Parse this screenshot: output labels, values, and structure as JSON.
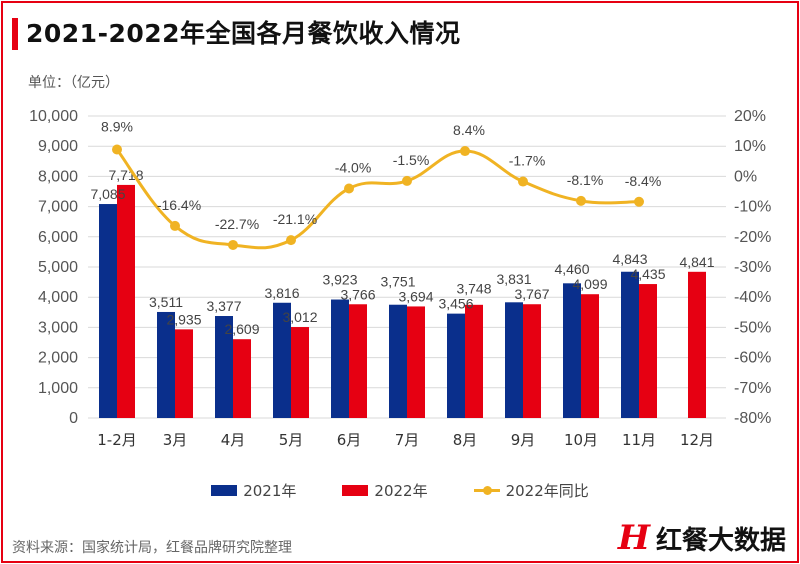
{
  "title": "2021-2022年全国各月餐饮收入情况",
  "unit": "单位：（亿元）",
  "source": "资料来源：国家统计局，红餐品牌研究院整理",
  "logo": {
    "mark": "H",
    "text": "红餐大数据"
  },
  "colors": {
    "2021": "#0a2f8c",
    "2022": "#e60012",
    "yoy": "#f0b323",
    "accent": "#e60012"
  },
  "chart_data": {
    "type": "bar",
    "title": "2021-2022年全国各月餐饮收入情况",
    "ylabel": "单位：（亿元）",
    "categories": [
      "1-2月",
      "3月",
      "4月",
      "5月",
      "6月",
      "7月",
      "8月",
      "9月",
      "10月",
      "11月",
      "12月"
    ],
    "series": [
      {
        "name": "2021年",
        "type": "bar",
        "axis": "left",
        "values": [
          7085,
          3511,
          3377,
          3816,
          3923,
          3751,
          3456,
          3831,
          4460,
          4843,
          null
        ],
        "labels": [
          "7,085",
          "3,511",
          "3,377",
          "3,816",
          "3,923",
          "3,751",
          "3,456",
          "3,831",
          "4,460",
          "4,843",
          ""
        ]
      },
      {
        "name": "2022年",
        "type": "bar",
        "axis": "left",
        "values": [
          7718,
          2935,
          2609,
          3012,
          3766,
          3694,
          3748,
          3767,
          4099,
          4435,
          4841
        ],
        "labels": [
          "7,718",
          "2,935",
          "2,609",
          "3,012",
          "3,766",
          "3,694",
          "3,748",
          "3,767",
          "4,099",
          "4,435",
          "4,841"
        ]
      },
      {
        "name": "2022年同比",
        "type": "line",
        "axis": "right",
        "values": [
          8.9,
          -16.4,
          -22.7,
          -21.1,
          -4.0,
          -1.5,
          8.4,
          -1.7,
          -8.1,
          -8.4,
          null
        ],
        "labels": [
          "8.9%",
          "-16.4%",
          "-22.7%",
          "-21.1%",
          "-4.0%",
          "-1.5%",
          "8.4%",
          "-1.7%",
          "-8.1%",
          "-8.4%",
          ""
        ]
      }
    ],
    "ylim": [
      0,
      10000
    ],
    "y2lim": [
      -80,
      20
    ],
    "yticks": [
      "0",
      "1,000",
      "2,000",
      "3,000",
      "4,000",
      "5,000",
      "6,000",
      "7,000",
      "8,000",
      "9,000",
      "10,000"
    ],
    "y2ticks": [
      "-80%",
      "-70%",
      "-60%",
      "-50%",
      "-40%",
      "-30%",
      "-20%",
      "-10%",
      "0%",
      "10%",
      "20%"
    ],
    "grid": true,
    "legend": "bottom"
  }
}
